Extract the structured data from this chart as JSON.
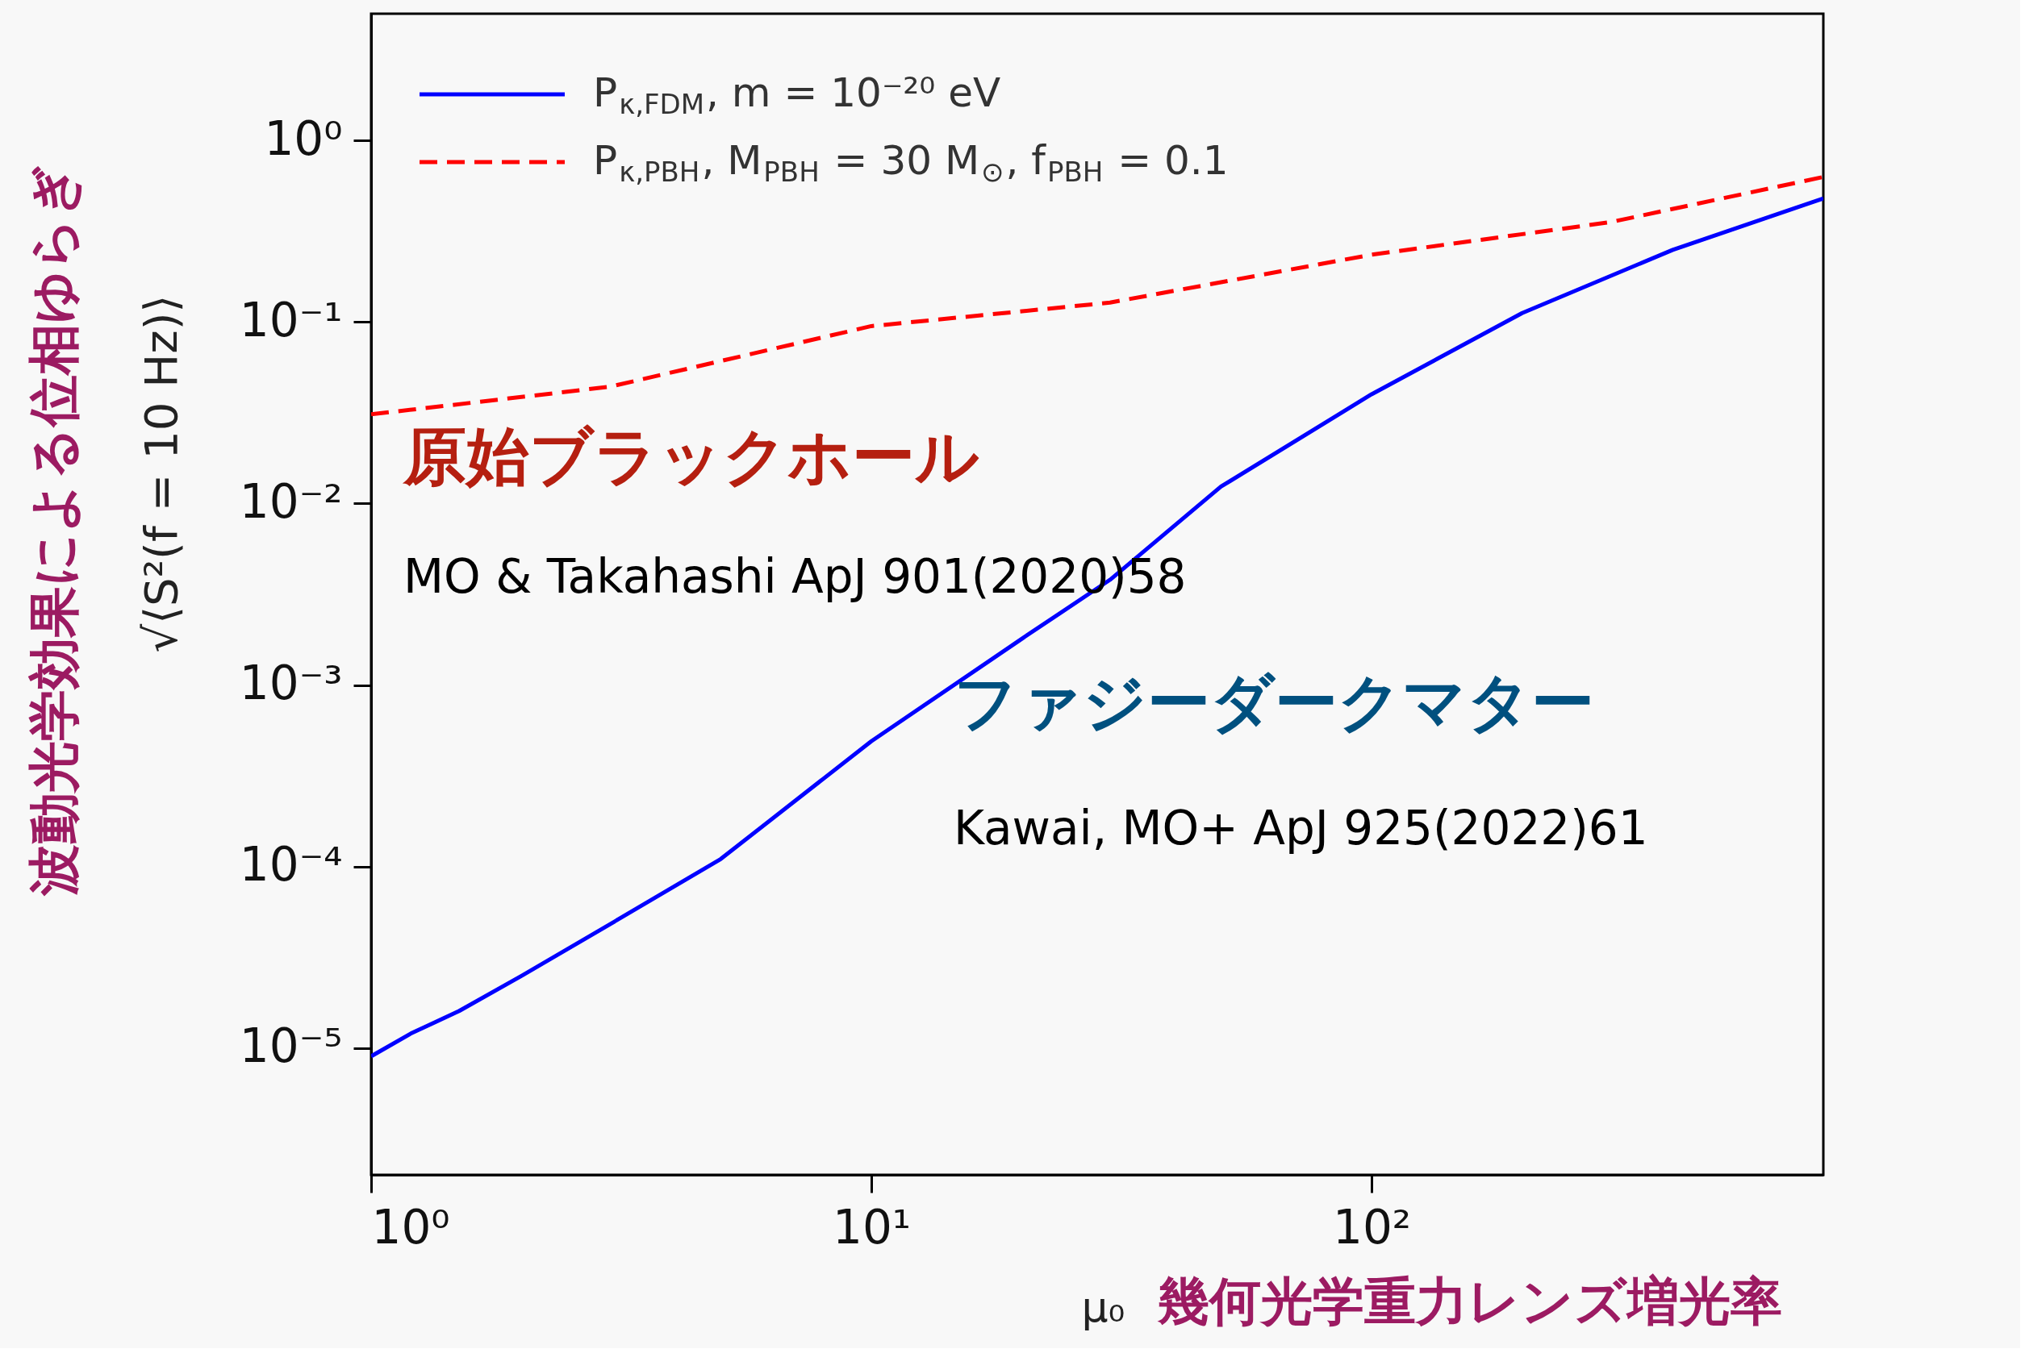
{
  "chart_data": {
    "type": "line",
    "xlabel": "μ₀",
    "ylabel": "√⟨S²(f = 10 Hz)⟩",
    "log": "xy",
    "grid": false,
    "legend": "top left",
    "xlim": [
      1,
      800
    ],
    "ylim": [
      2e-06,
      5
    ],
    "xticks": [
      {
        "value": 1,
        "label": "10⁰"
      },
      {
        "value": 10,
        "label": "10¹"
      },
      {
        "value": 100,
        "label": "10²"
      }
    ],
    "yticks": [
      {
        "value": 1e-05,
        "label": "10⁻⁵"
      },
      {
        "value": 0.0001,
        "label": "10⁻⁴"
      },
      {
        "value": 0.001,
        "label": "10⁻³"
      },
      {
        "value": 0.01,
        "label": "10⁻²"
      },
      {
        "value": 0.1,
        "label": "10⁻¹"
      },
      {
        "value": 1,
        "label": "10⁰"
      }
    ],
    "annotations": [
      "波動光学効果による位相ゆらぎ",
      "幾何光学重力レンズ増光率",
      "原始ブラックホール",
      "MO & Takahashi ApJ 901(2020)58",
      "ファジーダークマター",
      "Kawai, MO+ ApJ 925(2022)61"
    ],
    "series": [
      {
        "name": "P$_{κ,FDM}$, m = 10⁻²⁰ eV",
        "color": "#0000ff",
        "line_style": "solid",
        "x": [
          1,
          1.2,
          1.5,
          2,
          3,
          5,
          10,
          20,
          30,
          50,
          100,
          200,
          400,
          800
        ],
        "values": [
          9e-06,
          1.2e-05,
          1.6e-05,
          2.5e-05,
          4.8e-05,
          0.00011,
          0.00049,
          0.0018,
          0.0038,
          0.0124,
          0.04,
          0.112,
          0.25,
          0.48
        ]
      },
      {
        "name": "P$_{κ,PBH}$, M$_{PBH}$ = 30 M$_{⊙}$, f$_{PBH}$ = 0.1",
        "color": "#ff0000",
        "line_style": "dashed",
        "x": [
          1,
          3,
          10,
          30,
          100,
          300,
          800
        ],
        "values": [
          0.031,
          0.044,
          0.095,
          0.128,
          0.235,
          0.355,
          0.63
        ]
      }
    ]
  }
}
